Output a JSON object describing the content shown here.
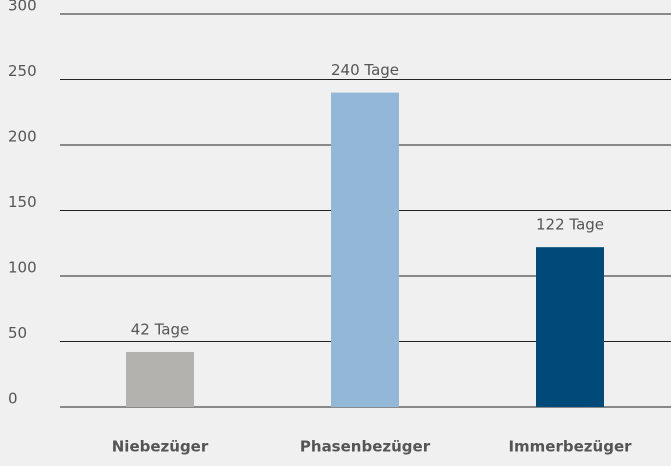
{
  "chart_data": {
    "type": "bar",
    "categories": [
      "Niebezüger",
      "Phasenbezüger",
      "Immerbezüger"
    ],
    "values": [
      42,
      240,
      122
    ],
    "value_labels": [
      "42 Tage",
      "240 Tage",
      "122 Tage"
    ],
    "colors": [
      "#b4b2af",
      "#93b8d7",
      "#004a7a"
    ],
    "ylim": [
      0,
      300
    ],
    "yticks": [
      0,
      50,
      100,
      150,
      200,
      250,
      300
    ],
    "grid": true
  }
}
